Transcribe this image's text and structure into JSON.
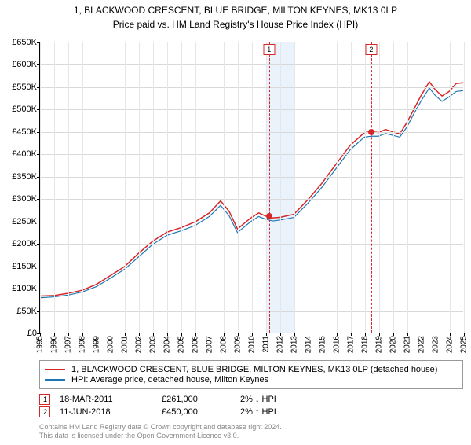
{
  "title": "1, BLACKWOOD CRESCENT, BLUE BRIDGE, MILTON KEYNES, MK13 0LP",
  "subtitle": "Price paid vs. HM Land Registry's House Price Index (HPI)",
  "chart": {
    "type": "line",
    "background_color": "#ffffff",
    "grid_color": "#d8d8d8",
    "minor_grid_color": "#e6e6e6",
    "axis_color": "#000000",
    "tick_fontsize": 11,
    "ylim": [
      0,
      650000
    ],
    "ytick_step": 50000,
    "ytick_prefix": "£",
    "ytick_suffix": "K",
    "ytick_divisor": 1000,
    "x_years": [
      1995,
      1996,
      1997,
      1998,
      1999,
      2000,
      2001,
      2002,
      2003,
      2004,
      2005,
      2006,
      2007,
      2008,
      2009,
      2010,
      2011,
      2012,
      2013,
      2014,
      2015,
      2016,
      2017,
      2018,
      2019,
      2020,
      2021,
      2022,
      2023,
      2024,
      2025
    ],
    "shade_bands": [
      {
        "from_year": 2011,
        "to_year": 2013
      }
    ],
    "series": [
      {
        "name": "1, BLACKWOOD CRESCENT, BLUE BRIDGE, MILTON KEYNES, MK13 0LP (detached house)",
        "color": "#d62728",
        "width": 1.5,
        "points": [
          {
            "x": 1995.0,
            "y": 82000
          },
          {
            "x": 1996.0,
            "y": 83000
          },
          {
            "x": 1997.0,
            "y": 88000
          },
          {
            "x": 1998.0,
            "y": 95000
          },
          {
            "x": 1999.0,
            "y": 108000
          },
          {
            "x": 2000.0,
            "y": 128000
          },
          {
            "x": 2001.0,
            "y": 148000
          },
          {
            "x": 2002.0,
            "y": 178000
          },
          {
            "x": 2003.0,
            "y": 205000
          },
          {
            "x": 2004.0,
            "y": 225000
          },
          {
            "x": 2005.0,
            "y": 235000
          },
          {
            "x": 2006.0,
            "y": 248000
          },
          {
            "x": 2007.0,
            "y": 268000
          },
          {
            "x": 2007.8,
            "y": 295000
          },
          {
            "x": 2008.4,
            "y": 272000
          },
          {
            "x": 2009.0,
            "y": 232000
          },
          {
            "x": 2009.6,
            "y": 248000
          },
          {
            "x": 2010.0,
            "y": 258000
          },
          {
            "x": 2010.5,
            "y": 268000
          },
          {
            "x": 2011.0,
            "y": 261000
          },
          {
            "x": 2011.5,
            "y": 257000
          },
          {
            "x": 2012.0,
            "y": 258000
          },
          {
            "x": 2013.0,
            "y": 265000
          },
          {
            "x": 2014.0,
            "y": 298000
          },
          {
            "x": 2015.0,
            "y": 335000
          },
          {
            "x": 2016.0,
            "y": 378000
          },
          {
            "x": 2017.0,
            "y": 420000
          },
          {
            "x": 2018.0,
            "y": 448000
          },
          {
            "x": 2018.5,
            "y": 450000
          },
          {
            "x": 2019.0,
            "y": 448000
          },
          {
            "x": 2019.5,
            "y": 455000
          },
          {
            "x": 2020.0,
            "y": 450000
          },
          {
            "x": 2020.5,
            "y": 445000
          },
          {
            "x": 2021.0,
            "y": 470000
          },
          {
            "x": 2021.5,
            "y": 500000
          },
          {
            "x": 2022.0,
            "y": 530000
          },
          {
            "x": 2022.6,
            "y": 562000
          },
          {
            "x": 2023.0,
            "y": 545000
          },
          {
            "x": 2023.5,
            "y": 530000
          },
          {
            "x": 2024.0,
            "y": 540000
          },
          {
            "x": 2024.5,
            "y": 558000
          },
          {
            "x": 2025.0,
            "y": 560000
          }
        ]
      },
      {
        "name": "HPI: Average price, detached house, Milton Keynes",
        "color": "#1f77b4",
        "width": 1.2,
        "points": [
          {
            "x": 1995.0,
            "y": 78000
          },
          {
            "x": 1996.0,
            "y": 80000
          },
          {
            "x": 1997.0,
            "y": 84000
          },
          {
            "x": 1998.0,
            "y": 91000
          },
          {
            "x": 1999.0,
            "y": 103000
          },
          {
            "x": 2000.0,
            "y": 122000
          },
          {
            "x": 2001.0,
            "y": 142000
          },
          {
            "x": 2002.0,
            "y": 170000
          },
          {
            "x": 2003.0,
            "y": 198000
          },
          {
            "x": 2004.0,
            "y": 218000
          },
          {
            "x": 2005.0,
            "y": 228000
          },
          {
            "x": 2006.0,
            "y": 240000
          },
          {
            "x": 2007.0,
            "y": 260000
          },
          {
            "x": 2007.8,
            "y": 285000
          },
          {
            "x": 2008.4,
            "y": 262000
          },
          {
            "x": 2009.0,
            "y": 224000
          },
          {
            "x": 2009.6,
            "y": 240000
          },
          {
            "x": 2010.0,
            "y": 250000
          },
          {
            "x": 2010.5,
            "y": 260000
          },
          {
            "x": 2011.0,
            "y": 254000
          },
          {
            "x": 2011.5,
            "y": 250000
          },
          {
            "x": 2012.0,
            "y": 252000
          },
          {
            "x": 2013.0,
            "y": 258000
          },
          {
            "x": 2014.0,
            "y": 290000
          },
          {
            "x": 2015.0,
            "y": 326000
          },
          {
            "x": 2016.0,
            "y": 368000
          },
          {
            "x": 2017.0,
            "y": 410000
          },
          {
            "x": 2018.0,
            "y": 438000
          },
          {
            "x": 2018.5,
            "y": 440000
          },
          {
            "x": 2019.0,
            "y": 440000
          },
          {
            "x": 2019.5,
            "y": 446000
          },
          {
            "x": 2020.0,
            "y": 442000
          },
          {
            "x": 2020.5,
            "y": 438000
          },
          {
            "x": 2021.0,
            "y": 460000
          },
          {
            "x": 2021.5,
            "y": 490000
          },
          {
            "x": 2022.0,
            "y": 518000
          },
          {
            "x": 2022.6,
            "y": 548000
          },
          {
            "x": 2023.0,
            "y": 532000
          },
          {
            "x": 2023.5,
            "y": 518000
          },
          {
            "x": 2024.0,
            "y": 528000
          },
          {
            "x": 2024.5,
            "y": 540000
          },
          {
            "x": 2025.0,
            "y": 542000
          }
        ]
      }
    ],
    "events": [
      {
        "label": "1",
        "year": 2011.21,
        "y": 261000
      },
      {
        "label": "2",
        "year": 2018.44,
        "y": 450000
      }
    ]
  },
  "legend": [
    {
      "color": "#d62728",
      "label": "1, BLACKWOOD CRESCENT, BLUE BRIDGE, MILTON KEYNES, MK13 0LP (detached house)"
    },
    {
      "color": "#1f77b4",
      "label": "HPI: Average price, detached house, Milton Keynes"
    }
  ],
  "events_table": [
    {
      "badge": "1",
      "date": "18-MAR-2011",
      "price": "£261,000",
      "note": "2% ↓ HPI"
    },
    {
      "badge": "2",
      "date": "11-JUN-2018",
      "price": "£450,000",
      "note": "2% ↑ HPI"
    }
  ],
  "footer": {
    "line1": "Contains HM Land Registry data © Crown copyright and database right 2024.",
    "line2": "This data is licensed under the Open Government Licence v3.0."
  }
}
